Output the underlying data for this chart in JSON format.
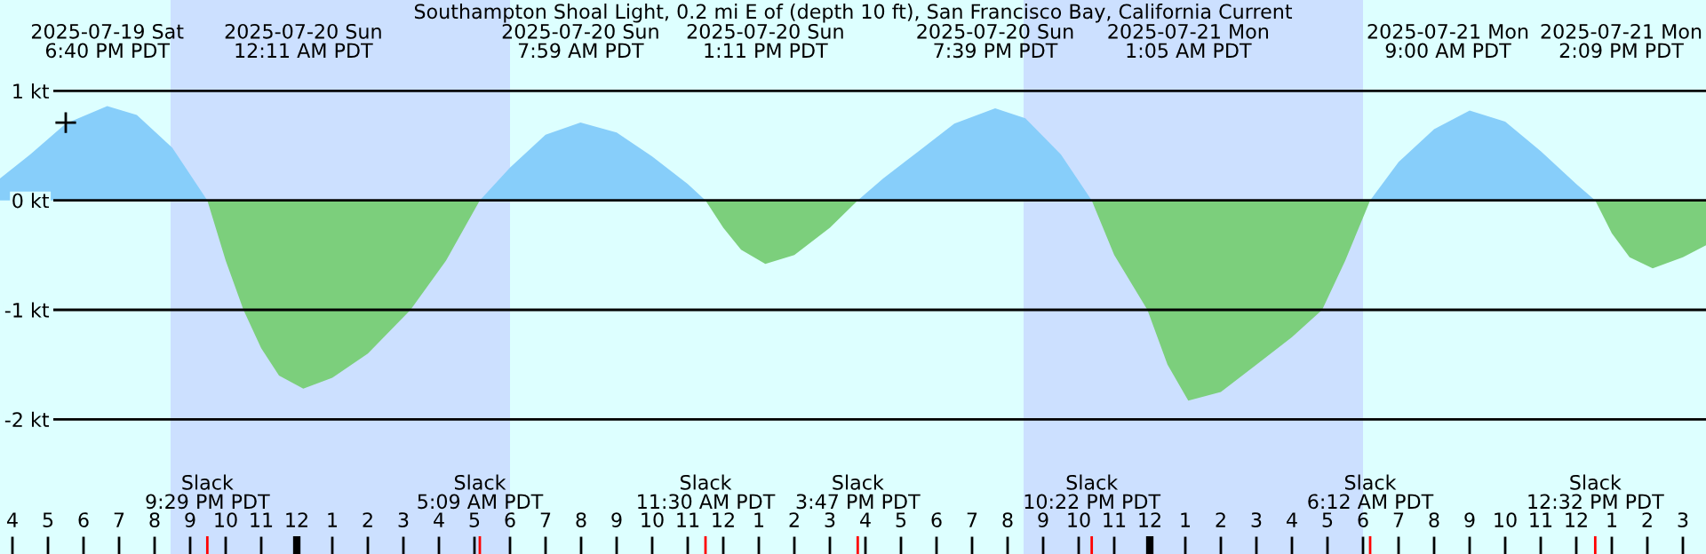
{
  "chart_data": {
    "type": "area",
    "title": "Southampton Shoal Light, 0.2 mi E of (depth 10 ft), San Francisco Bay, California Current",
    "xlim": [
      "2025-07-19T15:39",
      "2025-07-21T15:39"
    ],
    "ylim": [
      -3.23,
      1.83
    ],
    "yticks": [
      {
        "value": 1,
        "label": "1 kt"
      },
      {
        "value": 0,
        "label": "0 kt"
      },
      {
        "value": -1,
        "label": "-1 kt"
      },
      {
        "value": -2,
        "label": "-2 kt"
      }
    ],
    "xticks": [
      {
        "value": "2025-07-19T16:00",
        "label": "4"
      },
      {
        "value": "2025-07-19T17:00",
        "label": "5"
      },
      {
        "value": "2025-07-19T18:00",
        "label": "6"
      },
      {
        "value": "2025-07-19T19:00",
        "label": "7"
      },
      {
        "value": "2025-07-19T20:00",
        "label": "8"
      },
      {
        "value": "2025-07-19T21:00",
        "label": "9"
      },
      {
        "value": "2025-07-19T22:00",
        "label": "10"
      },
      {
        "value": "2025-07-19T23:00",
        "label": "11"
      },
      {
        "value": "2025-07-20T00:00",
        "label": "12"
      },
      {
        "value": "2025-07-20T01:00",
        "label": "1"
      },
      {
        "value": "2025-07-20T02:00",
        "label": "2"
      },
      {
        "value": "2025-07-20T03:00",
        "label": "3"
      },
      {
        "value": "2025-07-20T04:00",
        "label": "4"
      },
      {
        "value": "2025-07-20T05:00",
        "label": "5"
      },
      {
        "value": "2025-07-20T06:00",
        "label": "6"
      },
      {
        "value": "2025-07-20T07:00",
        "label": "7"
      },
      {
        "value": "2025-07-20T08:00",
        "label": "8"
      },
      {
        "value": "2025-07-20T09:00",
        "label": "9"
      },
      {
        "value": "2025-07-20T10:00",
        "label": "10"
      },
      {
        "value": "2025-07-20T11:00",
        "label": "11"
      },
      {
        "value": "2025-07-20T12:00",
        "label": "12"
      },
      {
        "value": "2025-07-20T13:00",
        "label": "1"
      },
      {
        "value": "2025-07-20T14:00",
        "label": "2"
      },
      {
        "value": "2025-07-20T15:00",
        "label": "3"
      },
      {
        "value": "2025-07-20T16:00",
        "label": "4"
      },
      {
        "value": "2025-07-20T17:00",
        "label": "5"
      },
      {
        "value": "2025-07-20T18:00",
        "label": "6"
      },
      {
        "value": "2025-07-20T19:00",
        "label": "7"
      },
      {
        "value": "2025-07-20T20:00",
        "label": "8"
      },
      {
        "value": "2025-07-20T21:00",
        "label": "9"
      },
      {
        "value": "2025-07-20T22:00",
        "label": "10"
      },
      {
        "value": "2025-07-20T23:00",
        "label": "11"
      },
      {
        "value": "2025-07-21T00:00",
        "label": "12"
      },
      {
        "value": "2025-07-21T01:00",
        "label": "1"
      },
      {
        "value": "2025-07-21T02:00",
        "label": "2"
      },
      {
        "value": "2025-07-21T03:00",
        "label": "3"
      },
      {
        "value": "2025-07-21T04:00",
        "label": "4"
      },
      {
        "value": "2025-07-21T05:00",
        "label": "5"
      },
      {
        "value": "2025-07-21T06:00",
        "label": "6"
      },
      {
        "value": "2025-07-21T07:00",
        "label": "7"
      },
      {
        "value": "2025-07-21T08:00",
        "label": "8"
      },
      {
        "value": "2025-07-21T09:00",
        "label": "9"
      },
      {
        "value": "2025-07-21T10:00",
        "label": "10"
      },
      {
        "value": "2025-07-21T11:00",
        "label": "11"
      },
      {
        "value": "2025-07-21T12:00",
        "label": "12"
      },
      {
        "value": "2025-07-21T13:00",
        "label": "1"
      },
      {
        "value": "2025-07-21T14:00",
        "label": "2"
      },
      {
        "value": "2025-07-21T15:00",
        "label": "3"
      }
    ],
    "grid": "y",
    "bands": [
      {
        "axis": "x",
        "from": "2025-07-19T20:27",
        "to": "2025-07-20T06:00",
        "color": "#cce0ff"
      },
      {
        "axis": "x",
        "from": "2025-07-20T20:27",
        "to": "2025-07-21T06:00",
        "color": "#cce0ff"
      }
    ],
    "series": [
      {
        "color": "#87cefa",
        "x": [
          "2025-07-19T15:39",
          "2025-07-19T16:30",
          "2025-07-19T17:30",
          "2025-07-19T18:40",
          "2025-07-19T19:30",
          "2025-07-19T20:30",
          "2025-07-19T21:29",
          "2025-07-20T05:09",
          "2025-07-20T06:00",
          "2025-07-20T07:00",
          "2025-07-20T07:59",
          "2025-07-20T09:00",
          "2025-07-20T10:00",
          "2025-07-20T11:00",
          "2025-07-20T11:30",
          "2025-07-20T15:47",
          "2025-07-20T16:30",
          "2025-07-20T17:30",
          "2025-07-20T18:30",
          "2025-07-20T19:39",
          "2025-07-20T20:30",
          "2025-07-20T21:30",
          "2025-07-20T22:22",
          "2025-07-21T06:12",
          "2025-07-21T07:00",
          "2025-07-21T08:00",
          "2025-07-21T09:00",
          "2025-07-21T10:00",
          "2025-07-21T11:00",
          "2025-07-21T12:00",
          "2025-07-21T12:32"
        ],
        "values": [
          0.2,
          0.42,
          0.7,
          0.86,
          0.78,
          0.48,
          0,
          0,
          0.3,
          0.6,
          0.71,
          0.62,
          0.4,
          0.15,
          0,
          0,
          0.2,
          0.45,
          0.7,
          0.84,
          0.75,
          0.42,
          0,
          0,
          0.35,
          0.65,
          0.82,
          0.72,
          0.45,
          0.15,
          0
        ]
      },
      {
        "color": "#7ccf7c",
        "x": [
          "2025-07-19T21:29",
          "2025-07-19T22:00",
          "2025-07-19T22:30",
          "2025-07-19T23:00",
          "2025-07-19T23:30",
          "2025-07-20T00:11",
          "2025-07-20T01:00",
          "2025-07-20T02:00",
          "2025-07-20T03:12",
          "2025-07-20T04:12",
          "2025-07-20T05:09",
          "2025-07-20T11:30",
          "2025-07-20T12:00",
          "2025-07-20T12:30",
          "2025-07-20T13:11",
          "2025-07-20T14:00",
          "2025-07-20T15:00",
          "2025-07-20T15:47",
          "2025-07-20T22:22",
          "2025-07-20T23:00",
          "2025-07-20T23:56",
          "2025-07-21T00:30",
          "2025-07-21T01:05",
          "2025-07-21T02:00",
          "2025-07-21T03:00",
          "2025-07-21T04:00",
          "2025-07-21T04:51",
          "2025-07-21T05:30",
          "2025-07-21T06:12",
          "2025-07-21T12:32",
          "2025-07-21T13:00",
          "2025-07-21T13:30",
          "2025-07-21T14:09",
          "2025-07-21T15:00",
          "2025-07-21T15:39"
        ],
        "values": [
          0,
          -0.55,
          -1.0,
          -1.35,
          -1.6,
          -1.72,
          -1.62,
          -1.4,
          -1.0,
          -0.55,
          0,
          0,
          -0.25,
          -0.45,
          -0.58,
          -0.5,
          -0.25,
          0,
          0,
          -0.5,
          -1.0,
          -1.5,
          -1.83,
          -1.75,
          -1.5,
          -1.25,
          -1.0,
          -0.55,
          0,
          0,
          -0.3,
          -0.52,
          -0.62,
          -0.52,
          -0.41
        ]
      },
      {
        "type": "scatter",
        "marker": "cross",
        "color": "#000000",
        "x": [
          "2025-07-19T17:30"
        ],
        "values": [
          0.71
        ]
      }
    ],
    "annotations": [
      "2025-07-19 Sat\n6:40 PM PDT",
      "2025-07-20 Sun\n12:11 AM PDT",
      "2025-07-20 Sun\n7:59 AM PDT",
      "2025-07-20 Sun\n1:11 PM PDT",
      "2025-07-20 Sun\n7:39 PM PDT",
      "2025-07-21 Mon\n1:05 AM PDT",
      "2025-07-21 Mon\n9:00 AM PDT",
      "2025-07-21 Mon\n2:09 PM PDT",
      "Slack\n9:29 PM PDT",
      "Slack\n5:09 AM PDT",
      "Slack\n11:30 AM PDT",
      "Slack\n3:47 PM PDT",
      "Slack\n10:22 PM PDT",
      "Slack\n6:12 AM PDT",
      "Slack\n12:32 PM PDT"
    ]
  }
}
